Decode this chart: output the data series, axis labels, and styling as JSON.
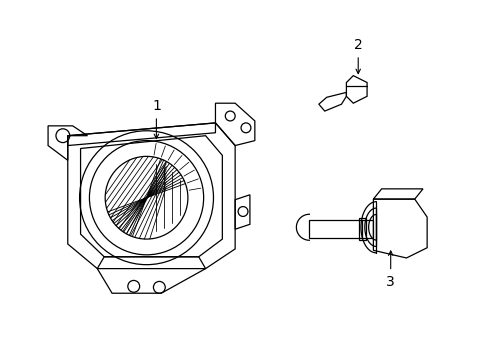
{
  "background_color": "#ffffff",
  "line_color": "#000000",
  "fig_width": 4.89,
  "fig_height": 3.6,
  "dpi": 100,
  "lw": 0.9,
  "label_fontsize": 10
}
